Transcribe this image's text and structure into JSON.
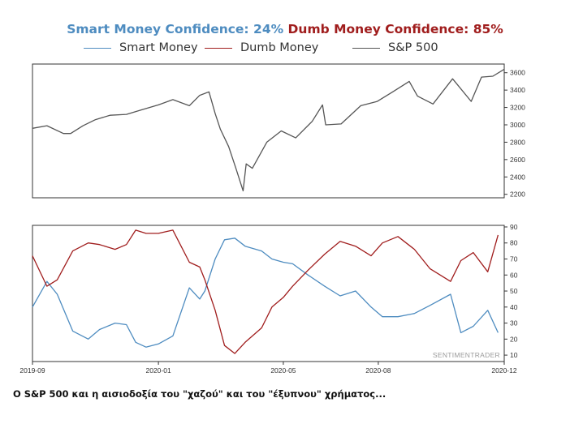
{
  "header": {
    "smart_title": "Smart Money Confidence: 24%",
    "dumb_title": "Dumb Money Confidence: 85%"
  },
  "legend": [
    {
      "label": "Smart Money",
      "color": "#4e8cc0"
    },
    {
      "label": "Dumb Money",
      "color": "#a01d1d"
    },
    {
      "label": "S&P 500",
      "color": "#555555"
    }
  ],
  "caption": "Ο S&P 500 και η αισιοδοξία του \"χαζού\" και του \"έξυπνου\" χρήματος...",
  "watermark": "SENTIMENTRADER",
  "chart_data": [
    {
      "type": "line",
      "series": [
        {
          "name": "S&P 500",
          "color": "#555555",
          "x": [
            "2019-09-01",
            "2019-09-15",
            "2019-10-01",
            "2019-10-08",
            "2019-10-20",
            "2019-11-01",
            "2019-11-15",
            "2019-12-01",
            "2019-12-15",
            "2020-01-01",
            "2020-01-15",
            "2020-01-31",
            "2020-02-10",
            "2020-02-19",
            "2020-02-25",
            "2020-03-01",
            "2020-03-09",
            "2020-03-16",
            "2020-03-23",
            "2020-03-26",
            "2020-04-01",
            "2020-04-15",
            "2020-04-29",
            "2020-05-13",
            "2020-05-29",
            "2020-06-08",
            "2020-06-11",
            "2020-06-26",
            "2020-07-15",
            "2020-07-31",
            "2020-08-15",
            "2020-08-31",
            "2020-09-08",
            "2020-09-23",
            "2020-10-12",
            "2020-10-30",
            "2020-11-09",
            "2020-11-20",
            "2020-12-01"
          ],
          "values": [
            2960,
            2990,
            2900,
            2900,
            2990,
            3060,
            3110,
            3120,
            3170,
            3230,
            3290,
            3220,
            3340,
            3380,
            3130,
            2950,
            2750,
            2500,
            2240,
            2550,
            2500,
            2800,
            2930,
            2850,
            3040,
            3230,
            3000,
            3010,
            3220,
            3270,
            3380,
            3500,
            3330,
            3240,
            3530,
            3270,
            3550,
            3560,
            3640
          ]
        }
      ],
      "xlim": [
        "2019-09-01",
        "2020-12-01"
      ],
      "ylim": [
        2160,
        3700
      ],
      "yticks": [
        "2200",
        "2400",
        "2600",
        "2800",
        "3000",
        "3200",
        "3400",
        "3600"
      ],
      "grid": false,
      "legend": "top"
    },
    {
      "type": "line",
      "series": [
        {
          "name": "Smart Money",
          "color": "#4e8cc0",
          "x": [
            "2019-09-01",
            "2019-09-15",
            "2019-09-25",
            "2019-10-10",
            "2019-10-25",
            "2019-11-05",
            "2019-11-20",
            "2019-12-01",
            "2019-12-10",
            "2019-12-20",
            "2020-01-01",
            "2020-01-15",
            "2020-01-31",
            "2020-02-10",
            "2020-02-15",
            "2020-02-25",
            "2020-03-05",
            "2020-03-15",
            "2020-03-25",
            "2020-04-10",
            "2020-04-20",
            "2020-05-01",
            "2020-05-10",
            "2020-05-25",
            "2020-06-10",
            "2020-06-25",
            "2020-07-10",
            "2020-07-25",
            "2020-08-05",
            "2020-08-20",
            "2020-09-05",
            "2020-09-20",
            "2020-10-10",
            "2020-10-20",
            "2020-11-01",
            "2020-11-15",
            "2020-11-25"
          ],
          "values": [
            40,
            56,
            48,
            25,
            20,
            26,
            30,
            29,
            18,
            15,
            17,
            22,
            52,
            45,
            50,
            70,
            82,
            83,
            78,
            75,
            70,
            68,
            67,
            60,
            53,
            47,
            50,
            40,
            34,
            34,
            36,
            41,
            48,
            24,
            28,
            38,
            24
          ]
        },
        {
          "name": "Dumb Money",
          "color": "#a01d1d",
          "x": [
            "2019-09-01",
            "2019-09-15",
            "2019-09-25",
            "2019-10-10",
            "2019-10-25",
            "2019-11-05",
            "2019-11-20",
            "2019-12-01",
            "2019-12-10",
            "2019-12-20",
            "2020-01-01",
            "2020-01-15",
            "2020-01-31",
            "2020-02-10",
            "2020-02-15",
            "2020-02-25",
            "2020-03-05",
            "2020-03-15",
            "2020-03-25",
            "2020-04-10",
            "2020-04-20",
            "2020-05-01",
            "2020-05-10",
            "2020-05-25",
            "2020-06-10",
            "2020-06-25",
            "2020-07-10",
            "2020-07-25",
            "2020-08-05",
            "2020-08-20",
            "2020-09-05",
            "2020-09-20",
            "2020-10-10",
            "2020-10-20",
            "2020-11-01",
            "2020-11-15",
            "2020-11-25"
          ],
          "values": [
            72,
            53,
            57,
            75,
            80,
            79,
            76,
            79,
            88,
            86,
            86,
            88,
            68,
            65,
            57,
            38,
            16,
            11,
            18,
            27,
            40,
            46,
            53,
            63,
            73,
            81,
            78,
            72,
            80,
            84,
            76,
            64,
            56,
            69,
            74,
            62,
            85
          ]
        }
      ],
      "xlim": [
        "2019-09-01",
        "2020-12-01"
      ],
      "ylim": [
        6,
        91
      ],
      "yticks": [
        "10",
        "20",
        "30",
        "40",
        "50",
        "60",
        "70",
        "80",
        "90"
      ],
      "xticks": [
        "2019-09",
        "2020-01",
        "2020-05",
        "2020-08",
        "2020-12"
      ],
      "grid": false,
      "legend": "top"
    }
  ]
}
